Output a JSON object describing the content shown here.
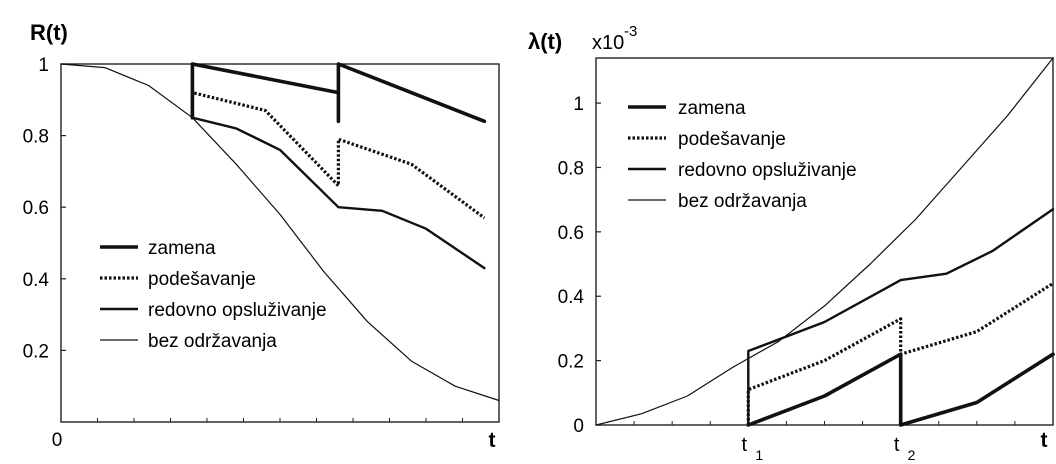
{
  "chart_data": [
    {
      "id": "left",
      "type": "line",
      "ylabel": "R(t)",
      "xlabel": "t",
      "x_tick_labels": [
        "0"
      ],
      "y_ticks": [
        {
          "value": 1,
          "label": "1"
        },
        {
          "value": 0.8,
          "label": "0.8"
        },
        {
          "value": 0.6,
          "label": "0.6"
        },
        {
          "value": 0.4,
          "label": "0.4"
        },
        {
          "value": 0.2,
          "label": "0.2"
        }
      ],
      "xlim": [
        0,
        3
      ],
      "ylim": [
        0,
        1
      ],
      "grid": false,
      "legend_position": "bottom-left",
      "legend": [
        "zamena",
        "podešavanje",
        "redovno opsluživanje",
        "bez održavanja"
      ],
      "series": [
        {
          "name": "zamena",
          "style": "thick",
          "x": [
            0.9,
            0.9,
            1.9,
            1.9,
            1.9,
            2.9
          ],
          "y": [
            0.85,
            1.0,
            0.92,
            0.84,
            1.0,
            0.84
          ]
        },
        {
          "name": "podešavanje",
          "style": "dotted",
          "x": [
            0.9,
            0.9,
            1.4,
            1.9,
            1.9,
            2.4,
            2.9
          ],
          "y": [
            0.85,
            0.92,
            0.87,
            0.66,
            0.79,
            0.72,
            0.57
          ]
        },
        {
          "name": "redovno opsluživanje",
          "style": "medium",
          "x": [
            0.9,
            1.2,
            1.5,
            1.9,
            2.2,
            2.5,
            2.9
          ],
          "y": [
            0.85,
            0.82,
            0.76,
            0.6,
            0.59,
            0.54,
            0.43
          ]
        },
        {
          "name": "bez održavanja",
          "style": "thin",
          "x": [
            0,
            0.3,
            0.6,
            0.9,
            1.2,
            1.5,
            1.8,
            2.1,
            2.4,
            2.7,
            3.0
          ],
          "y": [
            1.0,
            0.99,
            0.94,
            0.85,
            0.72,
            0.58,
            0.42,
            0.28,
            0.17,
            0.1,
            0.06
          ]
        }
      ]
    },
    {
      "id": "right",
      "type": "line",
      "ylabel": "λ(t)",
      "ylabel_unit": "x10",
      "ylabel_exponent": "-3",
      "xlabel": "t",
      "x_tick_labels": [
        {
          "x": 1,
          "main": "t",
          "sub": "1"
        },
        {
          "x": 2,
          "main": "t",
          "sub": "2"
        }
      ],
      "y_ticks": [
        {
          "value": 0,
          "label": "0"
        },
        {
          "value": 0.2,
          "label": "0.2"
        },
        {
          "value": 0.4,
          "label": "0.4"
        },
        {
          "value": 0.6,
          "label": "0.6"
        },
        {
          "value": 0.8,
          "label": "0.8"
        },
        {
          "value": 1,
          "label": "1"
        }
      ],
      "xlim": [
        0,
        3
      ],
      "ylim": [
        0,
        1.14
      ],
      "grid": false,
      "legend_position": "top-left",
      "legend": [
        "zamena",
        "podešavanje",
        "redovno opsluživanje",
        "bez održavanja"
      ],
      "series": [
        {
          "name": "zamena",
          "style": "thick",
          "x": [
            1.0,
            1.0,
            1.5,
            2.0,
            2.0,
            2.5,
            3.0
          ],
          "y": [
            0.0,
            0.0,
            0.09,
            0.22,
            0.0,
            0.07,
            0.22
          ]
        },
        {
          "name": "podešavanje",
          "style": "dotted",
          "x": [
            1.0,
            1.0,
            1.5,
            2.0,
            2.0,
            2.5,
            3.0
          ],
          "y": [
            0.0,
            0.11,
            0.2,
            0.33,
            0.22,
            0.29,
            0.44
          ]
        },
        {
          "name": "redovno opsluživanje",
          "style": "medium",
          "x": [
            1.0,
            1.0,
            1.5,
            2.0,
            2.3,
            2.6,
            3.0
          ],
          "y": [
            0.0,
            0.23,
            0.32,
            0.45,
            0.47,
            0.54,
            0.67
          ]
        },
        {
          "name": "bez održavanja",
          "style": "thin",
          "x": [
            0.0,
            0.3,
            0.6,
            0.9,
            1.2,
            1.5,
            1.8,
            2.1,
            2.4,
            2.7,
            3.0
          ],
          "y": [
            0.0,
            0.035,
            0.09,
            0.18,
            0.26,
            0.37,
            0.5,
            0.64,
            0.8,
            0.96,
            1.14
          ]
        }
      ]
    }
  ]
}
